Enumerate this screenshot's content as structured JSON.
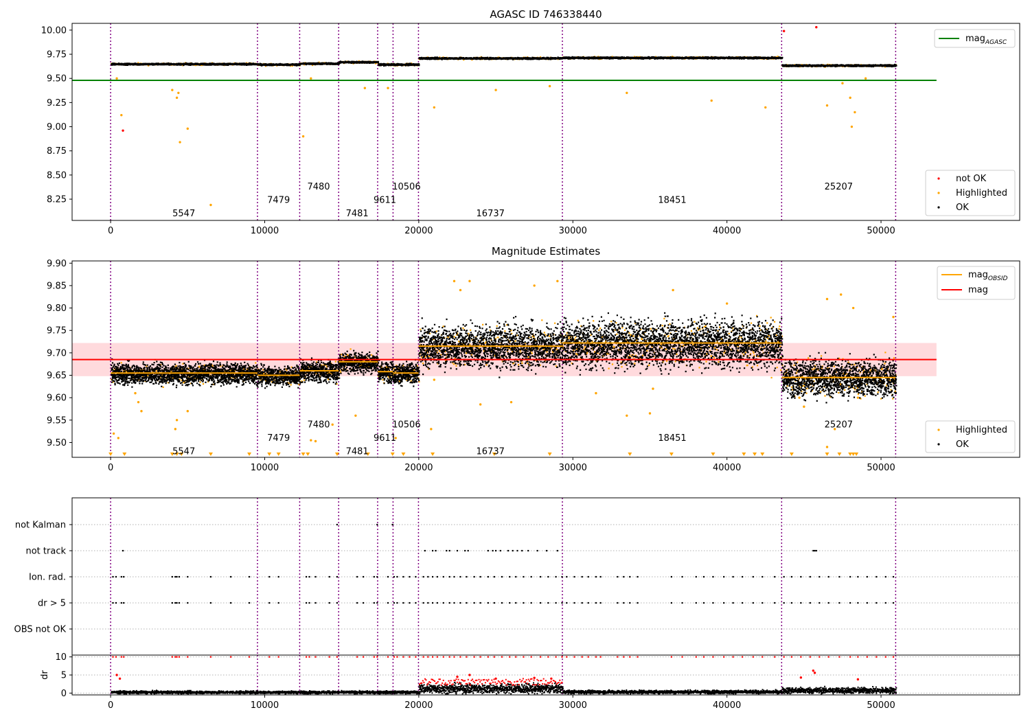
{
  "chart_data": [
    {
      "id": "agasc-panel",
      "type": "scatter",
      "title": "AGASC ID 746338440",
      "xlim": [
        -2500,
        59000
      ],
      "ylim": [
        8.03,
        10.07
      ],
      "x_ticks": [
        0,
        10000,
        20000,
        30000,
        40000,
        50000
      ],
      "y_ticks": [
        8.25,
        8.5,
        8.75,
        9.0,
        9.25,
        9.5,
        9.75,
        10.0
      ],
      "mag_agasc": 9.48,
      "legend_top": [
        {
          "label": "mag",
          "sub": "AGASC",
          "color": "#008000"
        }
      ],
      "legend_bottom": [
        {
          "label": "not OK",
          "color": "#ff0000"
        },
        {
          "label": "Highlighted",
          "color": "#ffa500"
        },
        {
          "label": "OK",
          "color": "#000000"
        }
      ],
      "segments": [
        {
          "x0": 0,
          "x1": 9530,
          "mean": 9.655
        },
        {
          "x0": 9530,
          "x1": 12270,
          "mean": 9.65
        },
        {
          "x0": 12270,
          "x1": 14800,
          "mean": 9.66
        },
        {
          "x0": 14800,
          "x1": 17330,
          "mean": 9.675
        },
        {
          "x0": 17330,
          "x1": 18330,
          "mean": 9.65
        },
        {
          "x0": 18330,
          "x1": 19980,
          "mean": 9.65
        },
        {
          "x0": 19980,
          "x1": 29320,
          "mean": 9.715
        },
        {
          "x0": 29320,
          "x1": 43550,
          "mean": 9.72
        },
        {
          "x0": 43550,
          "x1": 50950,
          "mean": 9.64
        }
      ],
      "highlighted_points": [
        [
          400,
          9.5
        ],
        [
          700,
          9.12
        ],
        [
          4000,
          9.38
        ],
        [
          4300,
          9.3
        ],
        [
          4400,
          9.35
        ],
        [
          4500,
          8.84
        ],
        [
          5000,
          8.98
        ],
        [
          6500,
          8.19
        ],
        [
          12500,
          8.9
        ],
        [
          13000,
          9.5
        ],
        [
          16500,
          9.4
        ],
        [
          18000,
          9.4
        ],
        [
          21000,
          9.2
        ],
        [
          25000,
          9.38
        ],
        [
          28500,
          9.42
        ],
        [
          33500,
          9.35
        ],
        [
          39000,
          9.27
        ],
        [
          42500,
          9.2
        ],
        [
          46500,
          9.22
        ],
        [
          47500,
          9.45
        ],
        [
          48000,
          9.3
        ],
        [
          48300,
          9.15
        ],
        [
          48100,
          9.0
        ],
        [
          49000,
          9.5
        ]
      ],
      "not_ok_points": [
        [
          800,
          8.96
        ],
        [
          43700,
          9.99
        ],
        [
          45800,
          10.03
        ]
      ],
      "obsids": [
        {
          "label": "5547",
          "x": 4750,
          "y": 8.1
        },
        {
          "label": "7479",
          "x": 10900,
          "y": 8.24
        },
        {
          "label": "7480",
          "x": 13500,
          "y": 8.38
        },
        {
          "label": "7481",
          "x": 16000,
          "y": 8.1
        },
        {
          "label": "9611",
          "x": 17800,
          "y": 8.24
        },
        {
          "label": "10506",
          "x": 19200,
          "y": 8.38
        },
        {
          "label": "16737",
          "x": 24650,
          "y": 8.1
        },
        {
          "label": "18451",
          "x": 36450,
          "y": 8.24
        },
        {
          "label": "25207",
          "x": 47250,
          "y": 8.38
        }
      ]
    },
    {
      "id": "estimates-panel",
      "type": "scatter",
      "title": "Magnitude Estimates",
      "xlim": [
        -2500,
        59000
      ],
      "ylim": [
        9.467,
        9.905
      ],
      "x_ticks": [
        0,
        10000,
        20000,
        30000,
        40000,
        50000
      ],
      "y_ticks": [
        9.5,
        9.55,
        9.6,
        9.65,
        9.7,
        9.75,
        9.8,
        9.85,
        9.9
      ],
      "mag": 9.685,
      "mag_band": [
        9.648,
        9.722
      ],
      "legend_top": [
        {
          "label": "mag",
          "sub": "OBSID",
          "color": "#ffa500"
        },
        {
          "label": "mag",
          "sub": "",
          "color": "#ff0000"
        }
      ],
      "legend_bottom": [
        {
          "label": "Highlighted",
          "color": "#ffa500"
        },
        {
          "label": "OK",
          "color": "#000000"
        }
      ],
      "segments": [
        {
          "x0": 0,
          "x1": 9530,
          "mean": 9.655,
          "spread": 0.022
        },
        {
          "x0": 9530,
          "x1": 12270,
          "mean": 9.65,
          "spread": 0.02
        },
        {
          "x0": 12270,
          "x1": 14800,
          "mean": 9.66,
          "spread": 0.022
        },
        {
          "x0": 14800,
          "x1": 17330,
          "mean": 9.68,
          "spread": 0.022
        },
        {
          "x0": 17330,
          "x1": 18330,
          "mean": 9.658,
          "spread": 0.022
        },
        {
          "x0": 18330,
          "x1": 19980,
          "mean": 9.655,
          "spread": 0.022
        },
        {
          "x0": 19980,
          "x1": 29320,
          "mean": 9.715,
          "spread": 0.045
        },
        {
          "x0": 29320,
          "x1": 43550,
          "mean": 9.722,
          "spread": 0.05
        },
        {
          "x0": 43550,
          "x1": 50950,
          "mean": 9.645,
          "spread": 0.04
        }
      ],
      "highlighted_points": [
        [
          200,
          9.52
        ],
        [
          500,
          9.51
        ],
        [
          1800,
          9.59
        ],
        [
          1600,
          9.61
        ],
        [
          2000,
          9.57
        ],
        [
          4200,
          9.53
        ],
        [
          4300,
          9.55
        ],
        [
          5000,
          9.57
        ],
        [
          13000,
          9.505
        ],
        [
          13300,
          9.503
        ],
        [
          14400,
          9.54
        ],
        [
          15900,
          9.56
        ],
        [
          18500,
          9.51
        ],
        [
          20800,
          9.53
        ],
        [
          21000,
          9.64
        ],
        [
          24000,
          9.585
        ],
        [
          26000,
          9.59
        ],
        [
          31500,
          9.61
        ],
        [
          33500,
          9.56
        ],
        [
          35000,
          9.565
        ],
        [
          35200,
          9.62
        ],
        [
          44700,
          9.6
        ],
        [
          45000,
          9.58
        ],
        [
          46500,
          9.49
        ],
        [
          47000,
          9.53
        ],
        [
          48500,
          9.6
        ],
        [
          22300,
          9.86
        ],
        [
          22700,
          9.84
        ],
        [
          23300,
          9.86
        ],
        [
          27500,
          9.85
        ],
        [
          29000,
          9.86
        ],
        [
          36500,
          9.84
        ],
        [
          40000,
          9.81
        ],
        [
          46500,
          9.82
        ],
        [
          47400,
          9.83
        ],
        [
          48200,
          9.8
        ],
        [
          50800,
          9.78
        ]
      ],
      "low_markers": [
        0,
        900,
        4000,
        4300,
        4600,
        6500,
        9000,
        10300,
        10900,
        12500,
        12800,
        14700,
        16700,
        18300,
        19000,
        20900,
        24900,
        28500,
        33700,
        36400,
        39100,
        41100,
        41800,
        42300,
        44200,
        46500,
        47300,
        48000,
        48200,
        48400
      ],
      "obsids": [
        {
          "label": "5547",
          "x": 4750,
          "y": 9.48
        },
        {
          "label": "7479",
          "x": 10900,
          "y": 9.51
        },
        {
          "label": "7480",
          "x": 13500,
          "y": 9.54
        },
        {
          "label": "7481",
          "x": 16000,
          "y": 9.48
        },
        {
          "label": "9611",
          "x": 17800,
          "y": 9.51
        },
        {
          "label": "10506",
          "x": 19200,
          "y": 9.54
        },
        {
          "label": "16737",
          "x": 24650,
          "y": 9.48
        },
        {
          "label": "18451",
          "x": 36450,
          "y": 9.51
        },
        {
          "label": "25207",
          "x": 47250,
          "y": 9.54
        }
      ]
    },
    {
      "id": "flags-panel",
      "type": "scatter",
      "xlim": [
        -2500,
        59000
      ],
      "categories": [
        "not Kalman",
        "not track",
        "Ion. rad.",
        "dr > 5",
        "OBS not OK"
      ],
      "flag_points": {
        "not Kalman": [
          14700,
          17300,
          18300
        ],
        "not track": [
          800,
          20400,
          20900,
          21100,
          21800,
          22000,
          22500,
          23000,
          23200,
          24500,
          24800,
          25000,
          25300,
          25800,
          26100,
          26400,
          26700,
          27100,
          27700,
          28300,
          29000,
          45600,
          45700,
          45800
        ],
        "Ion. rad.": [
          150,
          350,
          700,
          850,
          4000,
          4200,
          4300,
          4450,
          5000,
          6500,
          7800,
          9000,
          10300,
          10900,
          12700,
          12900,
          13300,
          14200,
          14700,
          16000,
          16400,
          17100,
          17300,
          18000,
          18400,
          18600,
          19000,
          19400,
          19800,
          20300,
          20600,
          20900,
          21200,
          21600,
          22000,
          22300,
          22700,
          23100,
          23600,
          24000,
          24500,
          24900,
          25400,
          25900,
          26300,
          26800,
          27300,
          27900,
          28400,
          28900,
          29300,
          29600,
          30100,
          30600,
          31000,
          31500,
          31800,
          32900,
          33300,
          33700,
          34200,
          36400,
          37100,
          38000,
          38500,
          39100,
          39800,
          40400,
          41000,
          41700,
          42300,
          43100,
          43700,
          44200,
          44800,
          45400,
          46000,
          46600,
          47300,
          48000,
          48500,
          49100,
          49700,
          50300,
          50800
        ],
        "dr > 5": [
          150,
          350,
          700,
          850,
          4000,
          4200,
          4300,
          4450,
          5000,
          6500,
          7800,
          9000,
          10300,
          10900,
          12700,
          12900,
          13300,
          14200,
          14700,
          16000,
          16400,
          17100,
          17300,
          18000,
          18400,
          18600,
          19000,
          19400,
          19800,
          20300,
          20600,
          20900,
          21200,
          21600,
          22000,
          22300,
          22700,
          23100,
          23600,
          24000,
          24500,
          24900,
          25400,
          25900,
          26300,
          26800,
          27300,
          27900,
          28400,
          28900,
          29300,
          29600,
          30100,
          30600,
          31000,
          31500,
          31800,
          32900,
          33300,
          33700,
          34200,
          36400,
          37100,
          38000,
          38500,
          39100,
          39800,
          40400,
          41000,
          41700,
          42300,
          43100,
          43700,
          44200,
          44800,
          45400,
          46000,
          46600,
          47300,
          48000,
          48500,
          49100,
          49700,
          50300,
          50800
        ],
        "OBS not OK": []
      }
    },
    {
      "id": "dr-panel",
      "type": "scatter",
      "xlim": [
        -2500,
        59000
      ],
      "ylim": [
        -0.5,
        10.5
      ],
      "ylabel": "dr",
      "x_ticks": [
        0,
        10000,
        20000,
        30000,
        40000,
        50000
      ],
      "y_ticks": [
        0,
        5,
        10
      ],
      "dr_levels": [
        {
          "x0": 0,
          "x1": 19980,
          "level": 0.4
        },
        {
          "x0": 19980,
          "x1": 29320,
          "level": 1.4
        },
        {
          "x0": 29320,
          "x1": 43550,
          "level": 0.5
        },
        {
          "x0": 43550,
          "x1": 50950,
          "level": 0.9
        }
      ],
      "dr_outliers": [
        [
          400,
          5
        ],
        [
          600,
          4
        ],
        [
          22500,
          4.5
        ],
        [
          23300,
          5
        ],
        [
          25000,
          4
        ],
        [
          27500,
          4.2
        ],
        [
          28600,
          4
        ],
        [
          45600,
          6.2
        ],
        [
          45700,
          5.6
        ],
        [
          44800,
          4.3
        ],
        [
          48500,
          3.8
        ]
      ]
    }
  ],
  "obsid_boundaries": [
    0,
    9530,
    12270,
    14800,
    17330,
    18330,
    19980,
    29320,
    43550,
    50950
  ]
}
